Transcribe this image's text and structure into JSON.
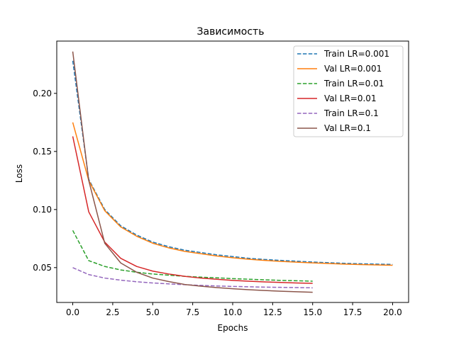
{
  "chart_data": {
    "type": "line",
    "title": "Зависимость",
    "xlabel": "Epochs",
    "ylabel": "Loss",
    "xlim": [
      -1.0,
      21.0
    ],
    "ylim": [
      0.02,
      0.245
    ],
    "xticks": [
      0.0,
      2.5,
      5.0,
      7.5,
      10.0,
      12.5,
      15.0,
      17.5,
      20.0
    ],
    "xtick_labels": [
      "0.0",
      "2.5",
      "5.0",
      "7.5",
      "10.0",
      "12.5",
      "15.0",
      "17.5",
      "20.0"
    ],
    "yticks": [
      0.05,
      0.1,
      0.15,
      0.2
    ],
    "ytick_labels": [
      "0.05",
      "0.10",
      "0.15",
      "0.20"
    ],
    "grid": false,
    "legend_position": "top-right",
    "series": [
      {
        "name": "Train LR=0.001",
        "color": "#1f77b4",
        "dash": "dashed",
        "x": [
          0,
          1,
          2,
          3,
          4,
          5,
          6,
          7,
          8,
          9,
          10,
          11,
          12,
          13,
          14,
          15,
          16,
          17,
          18,
          19,
          20
        ],
        "y": [
          0.228,
          0.126,
          0.1,
          0.086,
          0.078,
          0.072,
          0.068,
          0.065,
          0.063,
          0.061,
          0.0595,
          0.058,
          0.057,
          0.0562,
          0.0555,
          0.0548,
          0.0542,
          0.0537,
          0.0533,
          0.053,
          0.0527
        ]
      },
      {
        "name": "Val LR=0.001",
        "color": "#ff7f0e",
        "dash": "solid",
        "x": [
          0,
          1,
          2,
          3,
          4,
          5,
          6,
          7,
          8,
          9,
          10,
          11,
          12,
          13,
          14,
          15,
          16,
          17,
          18,
          19,
          20
        ],
        "y": [
          0.175,
          0.125,
          0.099,
          0.085,
          0.077,
          0.071,
          0.067,
          0.064,
          0.062,
          0.06,
          0.0585,
          0.0572,
          0.0562,
          0.0554,
          0.0547,
          0.0541,
          0.0535,
          0.053,
          0.0526,
          0.0523,
          0.052
        ]
      },
      {
        "name": "Train LR=0.01",
        "color": "#2ca02c",
        "dash": "dashed",
        "x": [
          0,
          1,
          2,
          3,
          4,
          5,
          6,
          7,
          8,
          9,
          10,
          11,
          12,
          13,
          14,
          15
        ],
        "y": [
          0.082,
          0.056,
          0.051,
          0.048,
          0.046,
          0.0445,
          0.0435,
          0.0425,
          0.0418,
          0.0412,
          0.0405,
          0.04,
          0.0395,
          0.039,
          0.0387,
          0.0383
        ]
      },
      {
        "name": "Val LR=0.01",
        "color": "#d62728",
        "dash": "solid",
        "x": [
          0,
          1,
          2,
          3,
          4,
          5,
          6,
          7,
          8,
          9,
          10,
          11,
          12,
          13,
          14,
          15
        ],
        "y": [
          0.163,
          0.098,
          0.072,
          0.058,
          0.051,
          0.047,
          0.0445,
          0.0425,
          0.041,
          0.04,
          0.039,
          0.0383,
          0.0377,
          0.0372,
          0.0368,
          0.0365
        ]
      },
      {
        "name": "Train LR=0.1",
        "color": "#9467bd",
        "dash": "dashed",
        "x": [
          0,
          1,
          2,
          3,
          4,
          5,
          6,
          7,
          8,
          9,
          10,
          11,
          12,
          13,
          14,
          15
        ],
        "y": [
          0.05,
          0.044,
          0.041,
          0.0392,
          0.0378,
          0.0368,
          0.036,
          0.0353,
          0.0347,
          0.0342,
          0.0338,
          0.0335,
          0.0332,
          0.033,
          0.0328,
          0.0326
        ]
      },
      {
        "name": "Val LR=0.1",
        "color": "#8c564b",
        "dash": "solid",
        "x": [
          0,
          1,
          2,
          3,
          4,
          5,
          6,
          7,
          8,
          9,
          10,
          11,
          12,
          13,
          14,
          15
        ],
        "y": [
          0.236,
          0.125,
          0.071,
          0.054,
          0.046,
          0.041,
          0.038,
          0.0355,
          0.034,
          0.0328,
          0.0318,
          0.031,
          0.0303,
          0.0297,
          0.0292,
          0.0288
        ]
      }
    ]
  }
}
